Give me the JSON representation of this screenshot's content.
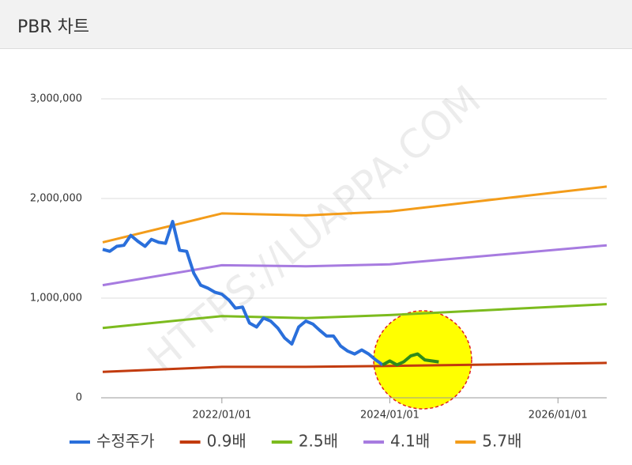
{
  "header": {
    "title": "PBR 차트"
  },
  "chart_data": {
    "type": "line",
    "watermark": "HTTPS://LUAPPA.COM",
    "xlim": [
      "2020/08/01",
      "2026/08/01"
    ],
    "xticks": [
      "2022/01/01",
      "2024/01/01",
      "2026/01/01"
    ],
    "ylim": [
      0,
      3000000
    ],
    "yticks": [
      0,
      {
        "value": 1000000,
        "label": "1,000,000"
      },
      {
        "value": 2000000,
        "label": "2,000,000"
      },
      {
        "value": 3000000,
        "label": "3,000,000"
      }
    ],
    "grid": true,
    "legend": "bottom",
    "series": [
      {
        "name": "수정주가",
        "color": "#2a6fdb",
        "width": 4,
        "x": [
          "2020/08/01",
          "2020/09/01",
          "2020/10/01",
          "2020/11/01",
          "2020/12/01",
          "2021/01/01",
          "2021/02/01",
          "2021/03/01",
          "2021/04/01",
          "2021/05/01",
          "2021/06/01",
          "2021/07/01",
          "2021/08/01",
          "2021/09/01",
          "2021/10/01",
          "2021/11/01",
          "2021/12/01",
          "2022/01/01",
          "2022/02/01",
          "2022/03/01",
          "2022/04/01",
          "2022/05/01",
          "2022/06/01",
          "2022/07/01",
          "2022/08/01",
          "2022/09/01",
          "2022/10/01",
          "2022/11/01",
          "2022/12/01",
          "2023/01/01",
          "2023/02/01",
          "2023/03/01",
          "2023/04/01",
          "2023/05/01",
          "2023/06/01",
          "2023/07/01",
          "2023/08/01",
          "2023/09/01",
          "2023/10/01",
          "2023/11/01",
          "2023/12/01"
        ],
        "values": [
          1490000,
          1470000,
          1520000,
          1530000,
          1630000,
          1570000,
          1520000,
          1590000,
          1560000,
          1550000,
          1770000,
          1480000,
          1470000,
          1250000,
          1130000,
          1100000,
          1060000,
          1040000,
          980000,
          900000,
          910000,
          750000,
          710000,
          800000,
          770000,
          700000,
          600000,
          540000,
          710000,
          770000,
          740000,
          680000,
          620000,
          620000,
          520000,
          470000,
          440000,
          480000,
          440000,
          380000,
          330000
        ]
      },
      {
        "color": "#2e8b1a",
        "width": 4,
        "x": [
          "2023/12/01",
          "2024/01/01",
          "2024/02/01",
          "2024/03/01",
          "2024/04/01",
          "2024/05/01",
          "2024/06/01",
          "2024/07/01",
          "2024/08/01"
        ],
        "values": [
          330000,
          370000,
          330000,
          360000,
          420000,
          440000,
          380000,
          370000,
          360000
        ]
      },
      {
        "name": "0.9배",
        "color": "#c23b0e",
        "width": 3,
        "x": [
          "2020/08/01",
          "2022/01/01",
          "2023/01/01",
          "2024/01/01",
          "2026/08/01"
        ],
        "values": [
          260000,
          310000,
          310000,
          320000,
          350000
        ]
      },
      {
        "name": "2.5배",
        "color": "#7cbb1e",
        "width": 3,
        "x": [
          "2020/08/01",
          "2022/01/01",
          "2023/01/01",
          "2024/01/01",
          "2026/08/01"
        ],
        "values": [
          700000,
          820000,
          800000,
          830000,
          940000
        ]
      },
      {
        "name": "4.1배",
        "color": "#a77be0",
        "width": 3,
        "x": [
          "2020/08/01",
          "2022/01/01",
          "2023/01/01",
          "2024/01/01",
          "2026/08/01"
        ],
        "values": [
          1130000,
          1330000,
          1320000,
          1340000,
          1530000
        ]
      },
      {
        "name": "5.7배",
        "color": "#f39c1a",
        "width": 3,
        "x": [
          "2020/08/01",
          "2022/01/01",
          "2023/01/01",
          "2024/01/01",
          "2026/08/01"
        ],
        "values": [
          1560000,
          1850000,
          1830000,
          1870000,
          2120000
        ]
      }
    ]
  }
}
